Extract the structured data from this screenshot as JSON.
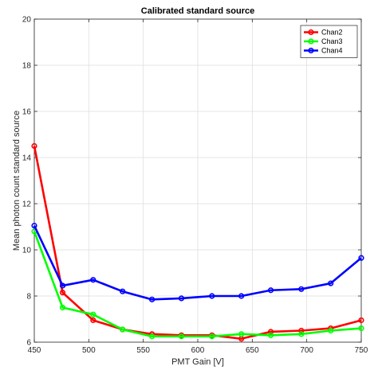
{
  "chart_data": {
    "type": "line",
    "title": "Calibrated standard source",
    "xlabel": "PMT Gain [V]",
    "ylabel": "Mean photon count standard source",
    "xlim": [
      450,
      750
    ],
    "ylim": [
      6,
      20
    ],
    "xticks": [
      450,
      500,
      550,
      600,
      650,
      700,
      750
    ],
    "yticks": [
      6,
      8,
      10,
      12,
      14,
      16,
      18,
      20
    ],
    "grid": true,
    "legend_position": "top-right",
    "x": [
      450,
      476,
      504,
      531,
      558,
      585,
      613,
      640,
      667,
      695,
      722,
      750
    ],
    "series": [
      {
        "name": "Chan2",
        "color": "#ff0000",
        "values": [
          14.5,
          8.15,
          6.95,
          6.55,
          6.35,
          6.3,
          6.3,
          6.15,
          6.45,
          6.5,
          6.6,
          6.95
        ]
      },
      {
        "name": "Chan3",
        "color": "#00ff00",
        "values": [
          10.8,
          7.5,
          7.2,
          6.55,
          6.25,
          6.25,
          6.25,
          6.35,
          6.3,
          6.35,
          6.5,
          6.6
        ]
      },
      {
        "name": "Chan4",
        "color": "#0000ff",
        "values": [
          11.05,
          8.45,
          8.7,
          8.2,
          7.85,
          7.9,
          8.0,
          8.0,
          8.25,
          8.3,
          8.55,
          9.65
        ]
      }
    ]
  }
}
